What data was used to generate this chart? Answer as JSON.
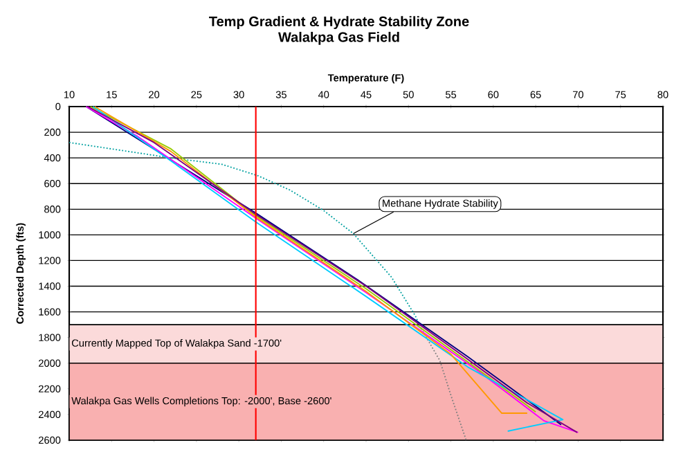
{
  "chart_data": {
    "type": "line",
    "title": "Temp Gradient & Hydrate Stability Zone",
    "subtitle": "Walakpa Gas Field",
    "xlabel": "Temperature (F)",
    "ylabel": "Corrected Depth (fts)",
    "xlim": [
      10,
      80
    ],
    "xticks": [
      10,
      15,
      20,
      25,
      30,
      35,
      40,
      45,
      50,
      55,
      60,
      65,
      70,
      75,
      80
    ],
    "ylim": [
      2600,
      0
    ],
    "yticks": [
      0,
      200,
      400,
      600,
      800,
      1000,
      1200,
      1400,
      1600,
      1800,
      2000,
      2200,
      2400,
      2600
    ],
    "grid": "y",
    "series": [
      {
        "color": "#00a0a0",
        "line_style": "dotted",
        "x": [
          10,
          14,
          22,
          28,
          32.3,
          36,
          40,
          43.5,
          48,
          50.8,
          51.5
        ],
        "values": [
          280,
          320,
          400,
          450,
          540,
          650,
          810,
          990,
          1330,
          1630,
          1730
        ]
      },
      {
        "color": "#808080",
        "line_style": "dotted",
        "x": [
          51.5,
          53.7,
          55,
          56.8
        ],
        "values": [
          1730,
          1980,
          2250,
          2600
        ]
      },
      {
        "color": "#000080",
        "line_style": "solid",
        "x": [
          12,
          32,
          44,
          57,
          68
        ],
        "values": [
          0,
          830,
          1350,
          1950,
          2480
        ]
      },
      {
        "color": "#ff00ff",
        "line_style": "solid",
        "x": [
          12,
          18,
          32,
          45,
          58,
          66,
          70
        ],
        "values": [
          0,
          230,
          870,
          1450,
          2050,
          2450,
          2540
        ]
      },
      {
        "color": "#99cc00",
        "line_style": "solid",
        "x": [
          12.5,
          22,
          32,
          45,
          57,
          65
        ],
        "values": [
          0,
          330,
          850,
          1420,
          1990,
          2380
        ]
      },
      {
        "color": "#00ccff",
        "line_style": "solid",
        "x": [
          12.8,
          21.5,
          32,
          45,
          57,
          68.2,
          61.7
        ],
        "values": [
          0,
          400,
          900,
          1480,
          2030,
          2440,
          2530
        ]
      },
      {
        "color": "#ff9900",
        "line_style": "solid",
        "x": [
          13,
          22,
          32,
          45,
          55,
          61,
          64
        ],
        "values": [
          0,
          350,
          860,
          1440,
          1930,
          2390,
          2390
        ]
      },
      {
        "color": "#800080",
        "line_style": "solid",
        "x": [
          12.2,
          20,
          32,
          45,
          57,
          64,
          69.9
        ],
        "values": [
          0,
          280,
          840,
          1400,
          1970,
          2310,
          2540
        ]
      }
    ],
    "ref_lines": [
      {
        "axis": "x",
        "value": 32,
        "color": "#ff0000"
      }
    ],
    "bands": [
      {
        "axis": "y",
        "from": 1700,
        "to": 2000,
        "label": "Currently Mapped Top of Walakpa Sand -1700'",
        "color": "#fbdada"
      },
      {
        "axis": "y",
        "from": 2000,
        "to": 2600,
        "label": "Walakpa Gas Wells Completions Top: -2000', Base -2600'",
        "color": "#f9b0b0"
      }
    ],
    "annotations": [
      {
        "text": "Methane Hydrate Stability",
        "x": 43.5,
        "y": 990
      }
    ]
  }
}
